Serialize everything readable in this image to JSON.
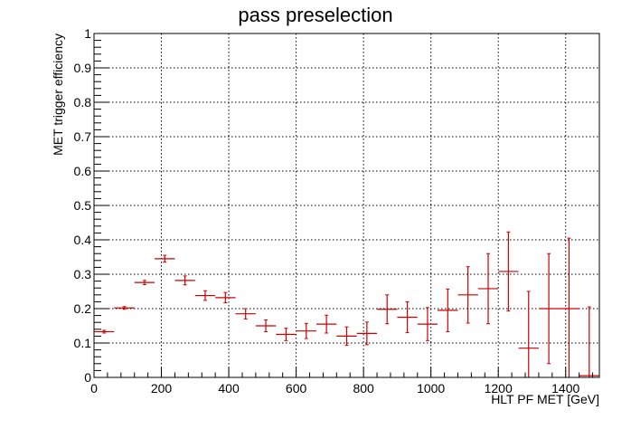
{
  "chart_data": {
    "type": "scatter",
    "title": "pass preselection",
    "xlabel": "HLT PF MET [GeV]",
    "ylabel": "MET trigger efficiency",
    "xlim": [
      0,
      1500
    ],
    "ylim": [
      0,
      1
    ],
    "grid": true,
    "x_ticks": [
      0,
      200,
      400,
      600,
      800,
      1000,
      1200,
      1400
    ],
    "y_ticks": [
      0,
      0.1,
      0.2,
      0.3,
      0.4,
      0.5,
      0.6,
      0.7,
      0.8,
      0.9,
      1
    ],
    "x_tick_labels": [
      "0",
      "200",
      "400",
      "600",
      "800",
      "1000",
      "1200",
      "1400"
    ],
    "y_tick_labels": [
      "0",
      "0.1",
      "0.2",
      "0.3",
      "0.4",
      "0.5",
      "0.6",
      "0.7",
      "0.8",
      "0.9",
      "1"
    ],
    "colors": {
      "series": "#cc0000",
      "grid": "#000000",
      "frame": "#000000"
    },
    "series": [
      {
        "bin_width": 60,
        "points": [
          {
            "x": 30,
            "y": 0.133,
            "err": 0.004
          },
          {
            "x": 90,
            "y": 0.202,
            "err": 0.004
          },
          {
            "x": 150,
            "y": 0.276,
            "err": 0.006
          },
          {
            "x": 210,
            "y": 0.345,
            "err": 0.01
          },
          {
            "x": 270,
            "y": 0.282,
            "err": 0.013
          },
          {
            "x": 330,
            "y": 0.238,
            "err": 0.014
          },
          {
            "x": 390,
            "y": 0.232,
            "err": 0.015
          },
          {
            "x": 450,
            "y": 0.185,
            "err": 0.015
          },
          {
            "x": 510,
            "y": 0.15,
            "err": 0.017
          },
          {
            "x": 570,
            "y": 0.125,
            "err": 0.018
          },
          {
            "x": 630,
            "y": 0.135,
            "err": 0.022
          },
          {
            "x": 690,
            "y": 0.155,
            "err": 0.026
          },
          {
            "x": 750,
            "y": 0.12,
            "err": 0.027
          },
          {
            "x": 810,
            "y": 0.128,
            "err": 0.033
          },
          {
            "x": 870,
            "y": 0.198,
            "err": 0.042
          },
          {
            "x": 930,
            "y": 0.175,
            "err": 0.045
          },
          {
            "x": 990,
            "y": 0.155,
            "err": 0.048
          },
          {
            "x": 1050,
            "y": 0.195,
            "err": 0.062
          },
          {
            "x": 1110,
            "y": 0.24,
            "err": 0.082
          },
          {
            "x": 1170,
            "y": 0.258,
            "err": 0.102
          },
          {
            "x": 1230,
            "y": 0.308,
            "err": 0.115
          },
          {
            "x": 1290,
            "y": 0.085,
            "err": 0.165
          },
          {
            "x": 1350,
            "y": 0.2,
            "err": 0.16
          },
          {
            "x": 1410,
            "y": 0.2,
            "err": 0.205
          },
          {
            "x": 1470,
            "y": 0.005,
            "err": 0.2
          }
        ]
      }
    ]
  }
}
